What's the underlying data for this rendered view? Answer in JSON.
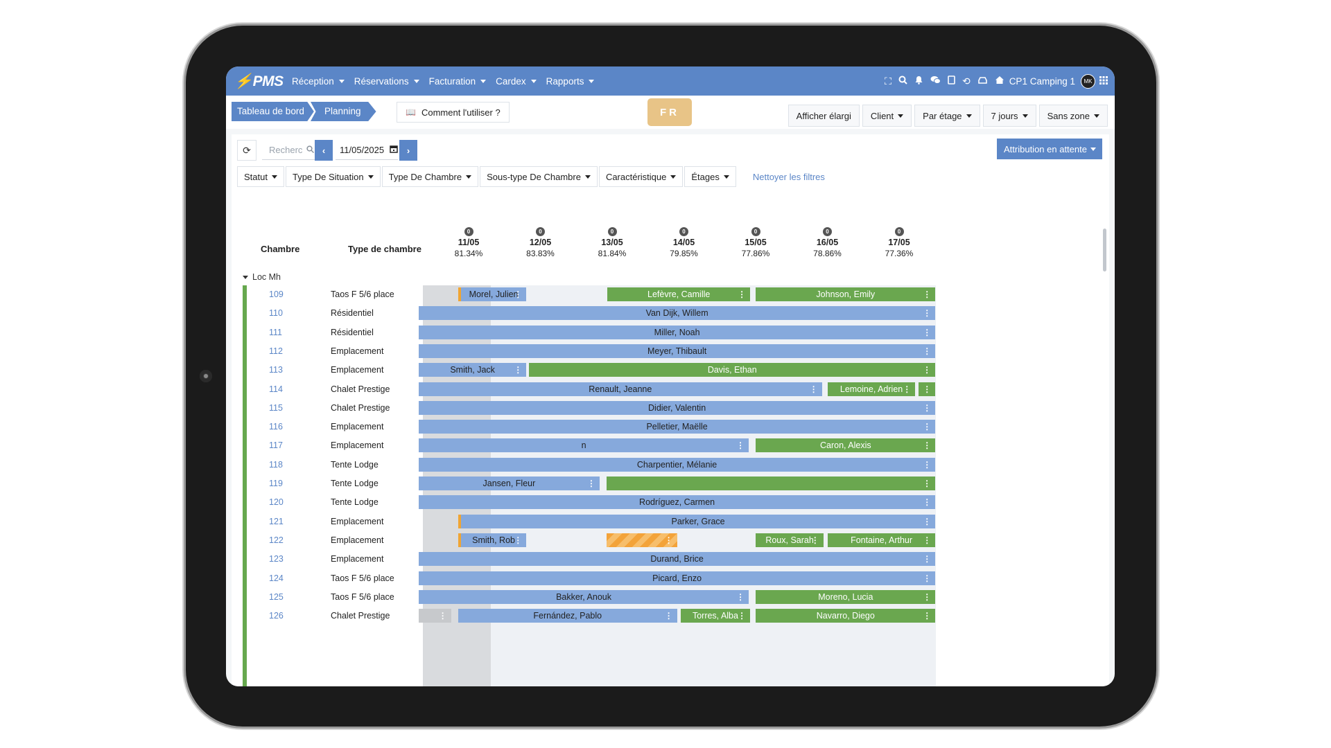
{
  "nav": {
    "logo": "PMS",
    "menu": [
      "Réception",
      "Réservations",
      "Facturation",
      "Cardex",
      "Rapports"
    ],
    "camping": "CP1 Camping 1",
    "avatar": "MK"
  },
  "breadcrumb": {
    "home": "Tableau de bord",
    "current": "Planning"
  },
  "howto_label": "Comment l'utiliser ?",
  "lang_badge": "FR",
  "view_buttons": [
    "Afficher élargi",
    "Client",
    "Par étage",
    "7 jours",
    "Sans zone"
  ],
  "toolbar": {
    "search_placeholder": "Recherc",
    "date_value": "11/05/2025",
    "attribution_label": "Attribution en attente"
  },
  "filters": [
    "Statut",
    "Type De Situation",
    "Type De Chambre",
    "Sous-type De Chambre",
    "Caractéristique",
    "Étages"
  ],
  "clear_filters": "Nettoyer les filtres",
  "columns": {
    "room": "Chambre",
    "room_type": "Type de chambre"
  },
  "days": [
    {
      "count": "0",
      "date": "11/05",
      "occupancy": "81.34%"
    },
    {
      "count": "0",
      "date": "12/05",
      "occupancy": "83.83%"
    },
    {
      "count": "0",
      "date": "13/05",
      "occupancy": "81.84%"
    },
    {
      "count": "0",
      "date": "14/05",
      "occupancy": "79.85%"
    },
    {
      "count": "0",
      "date": "15/05",
      "occupancy": "77.86%"
    },
    {
      "count": "0",
      "date": "16/05",
      "occupancy": "78.86%"
    },
    {
      "count": "0",
      "date": "17/05",
      "occupancy": "77.36%"
    }
  ],
  "group_label": "Loc Mh",
  "rows": [
    {
      "room": "109",
      "type": "Taos F 5/6 place"
    },
    {
      "room": "110",
      "type": "Résidentiel"
    },
    {
      "room": "111",
      "type": "Résidentiel"
    },
    {
      "room": "112",
      "type": "Emplacement"
    },
    {
      "room": "113",
      "type": "Emplacement"
    },
    {
      "room": "114",
      "type": "Chalet Prestige"
    },
    {
      "room": "115",
      "type": "Chalet Prestige"
    },
    {
      "room": "116",
      "type": "Emplacement"
    },
    {
      "room": "117",
      "type": "Emplacement"
    },
    {
      "room": "118",
      "type": "Tente Lodge"
    },
    {
      "room": "119",
      "type": "Tente Lodge"
    },
    {
      "room": "120",
      "type": "Tente Lodge"
    },
    {
      "room": "121",
      "type": "Emplacement"
    },
    {
      "room": "122",
      "type": "Emplacement"
    },
    {
      "room": "123",
      "type": "Emplacement"
    },
    {
      "room": "124",
      "type": "Taos F 5/6 place"
    },
    {
      "room": "125",
      "type": "Taos F 5/6 place"
    },
    {
      "room": "126",
      "type": "Chalet Prestige"
    }
  ],
  "bookings": [
    {
      "row": 0,
      "guest": "Morel, Julien",
      "color": "blue",
      "start": 0.55,
      "end": 1.5,
      "arrival_marker": true
    },
    {
      "row": 0,
      "guest": "Lefèvre, Camille",
      "color": "green",
      "start": 2.63,
      "end": 4.62
    },
    {
      "row": 0,
      "guest": "Johnson, Emily",
      "color": "green",
      "start": 4.7,
      "end": 7.2
    },
    {
      "row": 1,
      "guest": "Van Dijk, Willem",
      "color": "blue",
      "start": 0,
      "end": 7.2
    },
    {
      "row": 2,
      "guest": "Miller, Noah",
      "color": "blue",
      "start": 0,
      "end": 7.2
    },
    {
      "row": 3,
      "guest": "Meyer, Thibault",
      "color": "blue",
      "start": 0,
      "end": 7.2
    },
    {
      "row": 4,
      "guest": "Smith, Jack",
      "color": "blue",
      "start": 0,
      "end": 1.5
    },
    {
      "row": 4,
      "guest": "Davis, Ethan",
      "color": "green",
      "start": 1.54,
      "end": 7.2
    },
    {
      "row": 5,
      "guest": "Renault, Jeanne",
      "color": "blue",
      "start": 0,
      "end": 5.62
    },
    {
      "row": 5,
      "guest": "Lemoine, Adrien",
      "color": "green",
      "start": 5.7,
      "end": 6.92
    },
    {
      "row": 5,
      "guest": "",
      "color": "green",
      "start": 6.97,
      "end": 7.2
    },
    {
      "row": 6,
      "guest": "Didier, Valentin",
      "color": "blue",
      "start": 0,
      "end": 7.2
    },
    {
      "row": 7,
      "guest": "Pelletier, Maëlle",
      "color": "blue",
      "start": 0,
      "end": 7.2
    },
    {
      "row": 8,
      "guest": "n",
      "color": "blue",
      "start": 0,
      "end": 4.6
    },
    {
      "row": 8,
      "guest": "Caron, Alexis",
      "color": "green",
      "start": 4.7,
      "end": 7.2
    },
    {
      "row": 9,
      "guest": "Charpentier, Mélanie",
      "color": "blue",
      "start": 0,
      "end": 7.2
    },
    {
      "row": 10,
      "guest": "Jansen, Fleur",
      "color": "blue",
      "start": 0,
      "end": 2.52
    },
    {
      "row": 10,
      "guest": "",
      "color": "green",
      "start": 2.62,
      "end": 7.2
    },
    {
      "row": 11,
      "guest": "Rodríguez, Carmen",
      "color": "blue",
      "start": 0,
      "end": 7.2
    },
    {
      "row": 12,
      "guest": "Parker, Grace",
      "color": "blue",
      "start": 0.55,
      "end": 7.2,
      "arrival_marker": true
    },
    {
      "row": 13,
      "guest": "Smith, Rob",
      "color": "blue",
      "start": 0.55,
      "end": 1.5,
      "arrival_marker": true
    },
    {
      "row": 13,
      "guest": "",
      "color": "orange",
      "start": 2.62,
      "end": 3.6
    },
    {
      "row": 13,
      "guest": "Roux, Sarah",
      "color": "green",
      "start": 4.7,
      "end": 5.64
    },
    {
      "row": 13,
      "guest": "Fontaine, Arthur",
      "color": "green",
      "start": 5.7,
      "end": 7.2
    },
    {
      "row": 14,
      "guest": "Durand, Brice",
      "color": "blue",
      "start": 0,
      "end": 7.2
    },
    {
      "row": 15,
      "guest": "Picard, Enzo",
      "color": "blue",
      "start": 0,
      "end": 7.2
    },
    {
      "row": 16,
      "guest": "Bakker, Anouk",
      "color": "blue",
      "start": 0,
      "end": 4.6
    },
    {
      "row": 16,
      "guest": "Moreno, Lucia",
      "color": "green",
      "start": 4.7,
      "end": 7.2
    },
    {
      "row": 17,
      "guest": "",
      "color": "grey",
      "start": 0,
      "end": 0.45
    },
    {
      "row": 17,
      "guest": "Fernández, Pablo",
      "color": "blue",
      "start": 0.55,
      "end": 3.6
    },
    {
      "row": 17,
      "guest": "Torres, Alba",
      "color": "green",
      "start": 3.65,
      "end": 4.62
    },
    {
      "row": 17,
      "guest": "Navarro, Diego",
      "color": "green",
      "start": 4.7,
      "end": 7.2
    }
  ],
  "colors": {
    "primary": "#5b86c7",
    "booking_blue": "#86a9dc",
    "booking_green": "#6aa74f",
    "pending_orange": "#f3a33a",
    "lang_badge": "#e8c487"
  }
}
